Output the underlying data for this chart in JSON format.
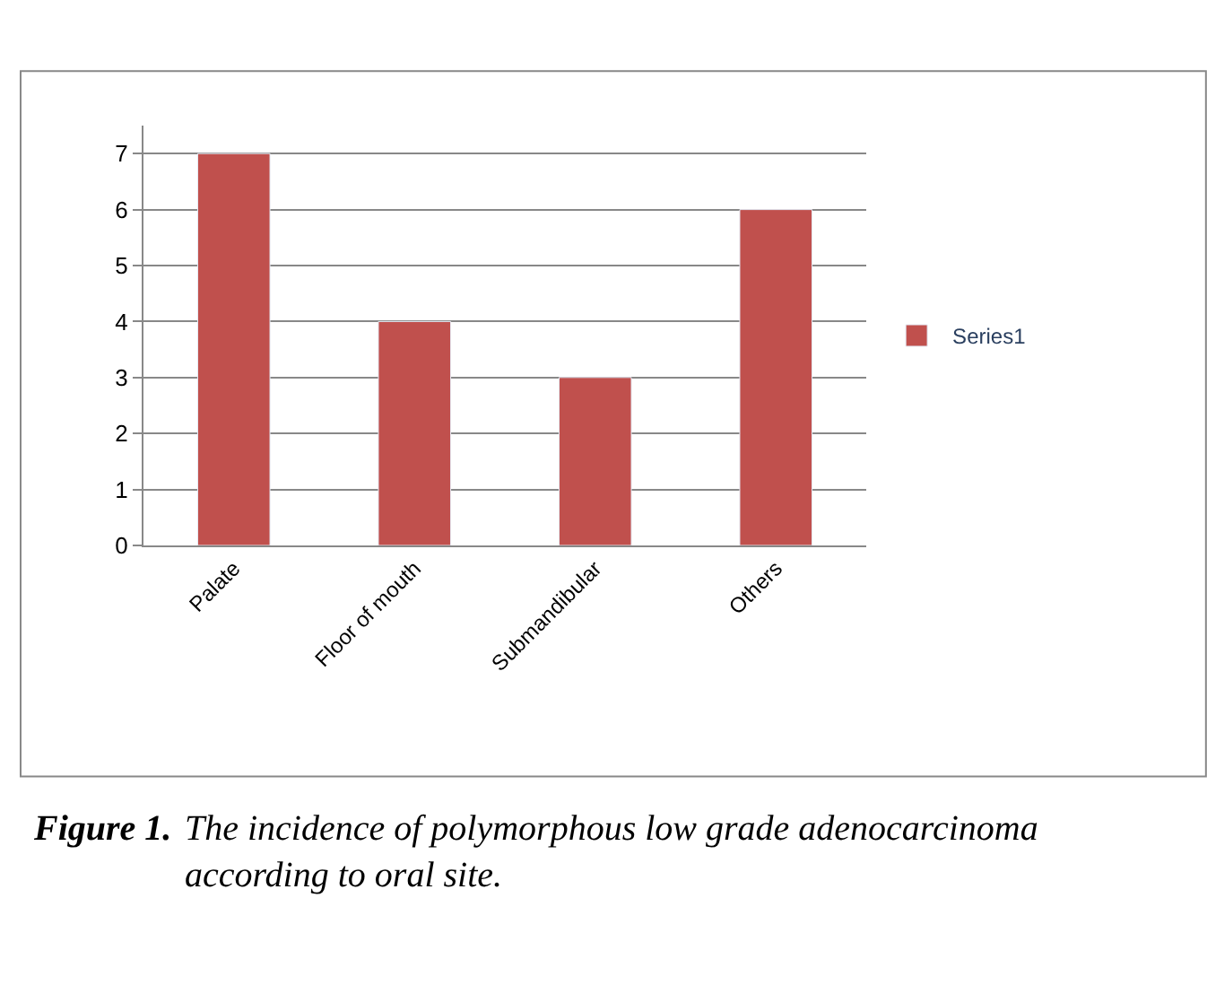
{
  "chart_data": {
    "type": "bar",
    "categories": [
      "Palate",
      "Floor of mouth",
      "Submandibular",
      "Others"
    ],
    "series": [
      {
        "name": "Series1",
        "color": "#c0504d",
        "values": [
          7,
          4,
          3,
          6
        ]
      }
    ],
    "ylim": [
      0,
      7.5
    ],
    "yticks": [
      0,
      1,
      2,
      3,
      4,
      5,
      6,
      7
    ],
    "grid": "y",
    "legend": "right",
    "annotations": [
      "Figure 1.",
      "The incidence of polymorphous low grade adenocarcinoma according to oral site."
    ]
  }
}
